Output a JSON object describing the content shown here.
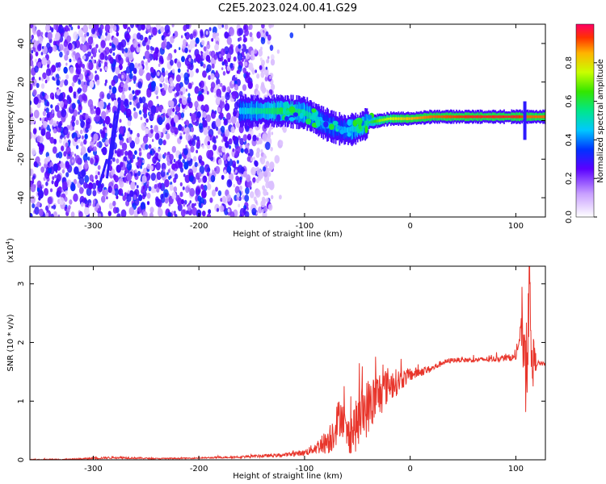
{
  "title": "C2E5.2023.024.00.41.G29",
  "chart_data": [
    {
      "type": "heatmap",
      "xlabel": "Height of straight line (km)",
      "ylabel": "Frequency (Hz)",
      "xlim": [
        -360,
        128
      ],
      "ylim": [
        -50,
        50
      ],
      "xticks": [
        {
          "value": -300,
          "label": "-300"
        },
        {
          "value": -200,
          "label": "-200"
        },
        {
          "value": -100,
          "label": "-100"
        },
        {
          "value": 0,
          "label": "0"
        },
        {
          "value": 100,
          "label": "100"
        }
      ],
      "yticks": [
        {
          "value": -40,
          "label": "-40"
        },
        {
          "value": -20,
          "label": "-20"
        },
        {
          "value": 0,
          "label": "0"
        },
        {
          "value": 20,
          "label": "20"
        },
        {
          "value": 40,
          "label": "40"
        }
      ],
      "colorbar": {
        "label": "Normalized spectral amplitude",
        "range": [
          0,
          1
        ],
        "ticks": [
          {
            "value": 0,
            "label": "0.0"
          },
          {
            "value": 0.2,
            "label": "0.2"
          },
          {
            "value": 0.4,
            "label": "0.4"
          },
          {
            "value": 0.6,
            "label": "0.6"
          },
          {
            "value": 0.8,
            "label": "0.8"
          }
        ]
      },
      "ridge": {
        "x": [
          -160,
          -140,
          -120,
          -100,
          -90,
          -80,
          -70,
          -60,
          -50,
          -40,
          -30,
          -20,
          -10,
          0,
          20,
          40,
          60,
          80,
          100,
          110,
          128
        ],
        "freq": [
          5,
          5,
          5,
          4,
          1,
          -2,
          -4,
          -5,
          -4,
          -1,
          0,
          1,
          1,
          1,
          2,
          2,
          2,
          2,
          2,
          2,
          2
        ],
        "amplitude": [
          0.45,
          0.55,
          0.6,
          0.55,
          0.5,
          0.45,
          0.4,
          0.45,
          0.5,
          0.55,
          0.7,
          0.75,
          0.8,
          0.85,
          0.9,
          0.92,
          0.95,
          0.95,
          0.95,
          0.9,
          0.9
        ]
      }
    },
    {
      "type": "line",
      "xlabel": "Height of straight line (km)",
      "ylabel": "SNR (10 * v/v)",
      "yscale_label": "(x10",
      "yscale_exp": "4",
      "yscale_close": ")",
      "xlim": [
        -360,
        128
      ],
      "ylim": [
        0,
        3.3
      ],
      "xticks": [
        {
          "value": -300,
          "label": "-300"
        },
        {
          "value": -200,
          "label": "-200"
        },
        {
          "value": -100,
          "label": "-100"
        },
        {
          "value": 0,
          "label": "0"
        },
        {
          "value": 100,
          "label": "100"
        }
      ],
      "yticks": [
        {
          "value": 0,
          "label": "0"
        },
        {
          "value": 1,
          "label": "1"
        },
        {
          "value": 2,
          "label": "2"
        },
        {
          "value": 3,
          "label": "3"
        }
      ],
      "series": [
        {
          "color": "#e8352b",
          "x": [
            -360,
            -320,
            -280,
            -240,
            -200,
            -160,
            -120,
            -100,
            -90,
            -80,
            -75,
            -70,
            -65,
            -60,
            -55,
            -50,
            -45,
            -40,
            -35,
            -30,
            -25,
            -20,
            -15,
            -10,
            -5,
            0,
            10,
            20,
            30,
            40,
            60,
            80,
            100,
            105,
            108,
            110,
            112,
            115,
            120,
            128
          ],
          "y": [
            0.0,
            0.01,
            0.04,
            0.02,
            0.03,
            0.05,
            0.08,
            0.12,
            0.2,
            0.3,
            0.4,
            0.6,
            0.8,
            0.4,
            0.5,
            0.6,
            0.8,
            0.9,
            1.0,
            1.1,
            1.2,
            1.3,
            1.3,
            1.35,
            1.4,
            1.45,
            1.5,
            1.55,
            1.65,
            1.7,
            1.7,
            1.72,
            1.75,
            2.2,
            2.0,
            1.6,
            3.2,
            1.7,
            1.65,
            1.63
          ],
          "noise_amplitude": [
            0.01,
            0.01,
            0.02,
            0.01,
            0.01,
            0.02,
            0.03,
            0.05,
            0.1,
            0.2,
            0.3,
            0.35,
            0.35,
            0.3,
            0.4,
            0.45,
            0.5,
            0.5,
            0.45,
            0.45,
            0.35,
            0.3,
            0.25,
            0.2,
            0.15,
            0.12,
            0.08,
            0.06,
            0.05,
            0.04,
            0.04,
            0.05,
            0.06,
            0.2,
            0.8,
            1.2,
            1.3,
            0.6,
            0.05,
            0.03
          ]
        }
      ]
    }
  ]
}
